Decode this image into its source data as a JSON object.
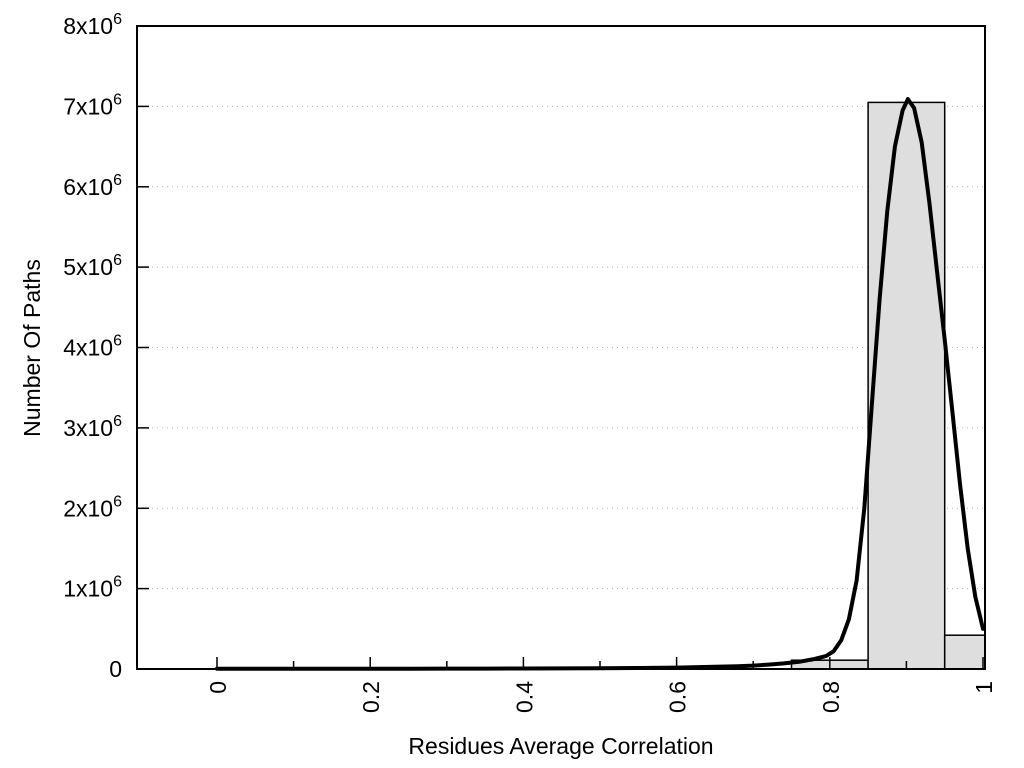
{
  "chart_data": {
    "type": "bar",
    "subtype": "histogram-with-fit-curve",
    "title": "",
    "xlabel": "Residues Average Correlation",
    "ylabel": "Number Of Paths",
    "xlim_visible": [
      -0.104,
      1.003
    ],
    "ylim": [
      0,
      8000000
    ],
    "grid": {
      "axis": "y",
      "style": "dotted",
      "color": "#b3b3b3"
    },
    "colors": {
      "background": "#ffffff",
      "bar_fill": "#dedede",
      "bar_border": "#000000",
      "curve": "#000000",
      "text": "#000000"
    },
    "x_axis": {
      "title": "Residues Average Correlation",
      "major_ticks": [
        {
          "value": 0,
          "label": "0"
        },
        {
          "value": 0.2,
          "label": "0.2"
        },
        {
          "value": 0.4,
          "label": "0.4"
        },
        {
          "value": 0.6,
          "label": "0.6"
        },
        {
          "value": 0.8,
          "label": "0.8"
        },
        {
          "value": 1,
          "label": "1"
        }
      ],
      "minor_tick_values": [
        0.1,
        0.3,
        0.5,
        0.7,
        0.9
      ],
      "tick_label_rotation_deg": -90
    },
    "y_axis": {
      "title": "Number Of Paths",
      "ticks": [
        {
          "value": 0,
          "base": "0",
          "sup": ""
        },
        {
          "value": 1000000,
          "base": "1x10",
          "sup": "6"
        },
        {
          "value": 2000000,
          "base": "2x10",
          "sup": "6"
        },
        {
          "value": 3000000,
          "base": "3x10",
          "sup": "6"
        },
        {
          "value": 4000000,
          "base": "4x10",
          "sup": "6"
        },
        {
          "value": 5000000,
          "base": "5x10",
          "sup": "6"
        },
        {
          "value": 6000000,
          "base": "6x10",
          "sup": "6"
        },
        {
          "value": 7000000,
          "base": "7x10",
          "sup": "6"
        },
        {
          "value": 8000000,
          "base": "8x10",
          "sup": "6"
        }
      ]
    },
    "bin_width": 0.1,
    "bars": [
      {
        "bin_center": 0.8,
        "bin_start": 0.75,
        "bin_end": 0.85,
        "count": 110000,
        "clipped": false
      },
      {
        "bin_center": 0.9,
        "bin_start": 0.85,
        "bin_end": 0.95,
        "count": 7050000,
        "clipped": false
      },
      {
        "bin_center": 1.0,
        "bin_start": 0.95,
        "bin_end": 1.05,
        "count": 420000,
        "clipped": true
      }
    ],
    "fit_curve": {
      "name": "distribution-fit",
      "peak_x": 0.902,
      "peak_count": 7090000,
      "points": [
        [
          0.0,
          4000
        ],
        [
          0.05,
          4000
        ],
        [
          0.1,
          4000
        ],
        [
          0.15,
          4000
        ],
        [
          0.2,
          4000
        ],
        [
          0.25,
          4000
        ],
        [
          0.3,
          4500
        ],
        [
          0.35,
          5000
        ],
        [
          0.4,
          6000
        ],
        [
          0.45,
          8000
        ],
        [
          0.5,
          10000
        ],
        [
          0.55,
          13000
        ],
        [
          0.6,
          18000
        ],
        [
          0.65,
          27000
        ],
        [
          0.68,
          35000
        ],
        [
          0.7,
          42000
        ],
        [
          0.72,
          55000
        ],
        [
          0.74,
          70000
        ],
        [
          0.76,
          90000
        ],
        [
          0.78,
          125000
        ],
        [
          0.795,
          160000
        ],
        [
          0.805,
          220000
        ],
        [
          0.815,
          360000
        ],
        [
          0.825,
          620000
        ],
        [
          0.835,
          1100000
        ],
        [
          0.845,
          2000000
        ],
        [
          0.855,
          3300000
        ],
        [
          0.865,
          4600000
        ],
        [
          0.875,
          5700000
        ],
        [
          0.885,
          6500000
        ],
        [
          0.895,
          6950000
        ],
        [
          0.902,
          7090000
        ],
        [
          0.91,
          6980000
        ],
        [
          0.92,
          6550000
        ],
        [
          0.93,
          5800000
        ],
        [
          0.94,
          4950000
        ],
        [
          0.95,
          4100000
        ],
        [
          0.96,
          3200000
        ],
        [
          0.97,
          2300000
        ],
        [
          0.98,
          1500000
        ],
        [
          0.99,
          900000
        ],
        [
          1.0,
          500000
        ]
      ]
    }
  }
}
